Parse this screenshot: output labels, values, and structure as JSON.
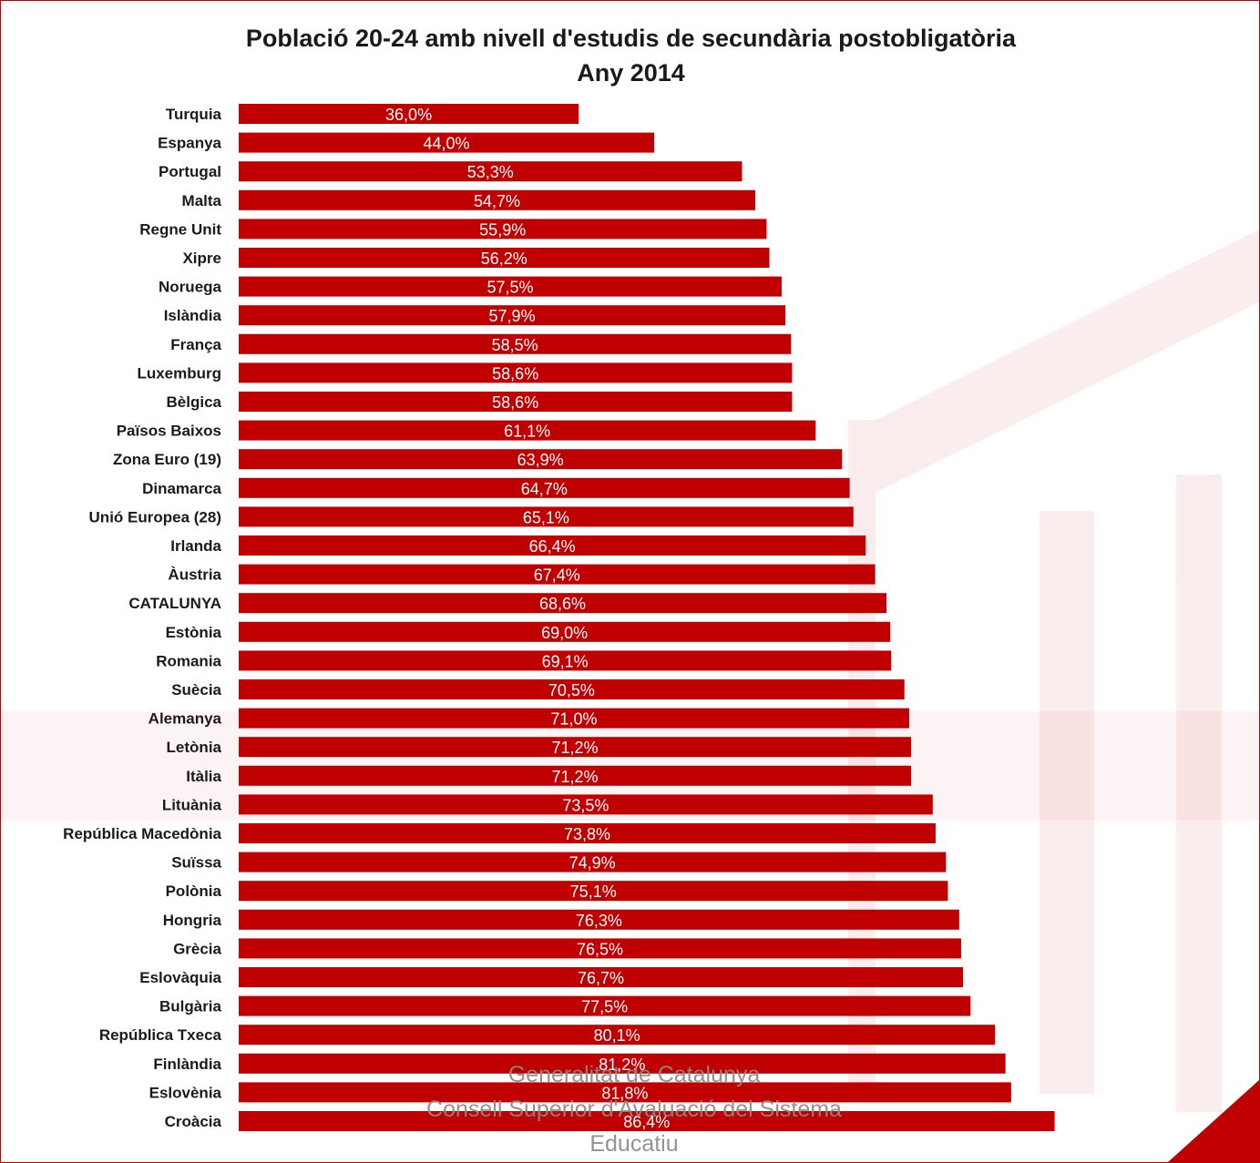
{
  "chart_data": {
    "type": "bar",
    "orientation": "horizontal",
    "title": "Població 20-24 amb nivell d'estudis de secundària postobligatòria",
    "subtitle": "Any 2014",
    "categories": [
      "Turquia",
      "Espanya",
      "Portugal",
      "Malta",
      "Regne Unit",
      "Xipre",
      "Noruega",
      "Islàndia",
      "França",
      "Luxemburg",
      "Bèlgica",
      "Països Baixos",
      "Zona Euro (19)",
      "Dinamarca",
      "Unió Europea (28)",
      "Irlanda",
      "Àustria",
      "CATALUNYA",
      "Estònia",
      "Romania",
      "Suècia",
      "Alemanya",
      "Letònia",
      "Itàlia",
      "Lituània",
      "República Macedònia",
      "Suïssa",
      "Polònia",
      "Hongria",
      "Grècia",
      "Eslovàquia",
      "Bulgària",
      "República Txeca",
      "Finlàndia",
      "Eslovènia",
      "Croàcia"
    ],
    "values": [
      36.0,
      44.0,
      53.3,
      54.7,
      55.9,
      56.2,
      57.5,
      57.9,
      58.5,
      58.6,
      58.6,
      61.1,
      63.9,
      64.7,
      65.1,
      66.4,
      67.4,
      68.6,
      69.0,
      69.1,
      70.5,
      71.0,
      71.2,
      71.2,
      73.5,
      73.8,
      74.9,
      75.1,
      76.3,
      76.5,
      76.7,
      77.5,
      80.1,
      81.2,
      81.8,
      86.4
    ],
    "value_labels": [
      "36,0%",
      "44,0%",
      "53,3%",
      "54,7%",
      "55,9%",
      "56,2%",
      "57,5%",
      "57,9%",
      "58,5%",
      "58,6%",
      "58,6%",
      "61,1%",
      "63,9%",
      "64,7%",
      "65,1%",
      "66,4%",
      "67,4%",
      "68,6%",
      "69,0%",
      "69,1%",
      "70,5%",
      "71,0%",
      "71,2%",
      "71,2%",
      "73,5%",
      "73,8%",
      "74,9%",
      "75,1%",
      "76,3%",
      "76,5%",
      "76,7%",
      "77,5%",
      "80,1%",
      "81,2%",
      "81,8%",
      "86,4%"
    ],
    "xlim": [
      0,
      100
    ],
    "grid": false,
    "legend": "none",
    "colors": {
      "bar": "#c00000",
      "label": "#ffffff",
      "frame": "#c00000"
    }
  },
  "footer": {
    "line1": "Generalitat de Catalunya",
    "line2": "Consell Superior d'Avaluació del Sistema",
    "line3": "Educatiu"
  }
}
